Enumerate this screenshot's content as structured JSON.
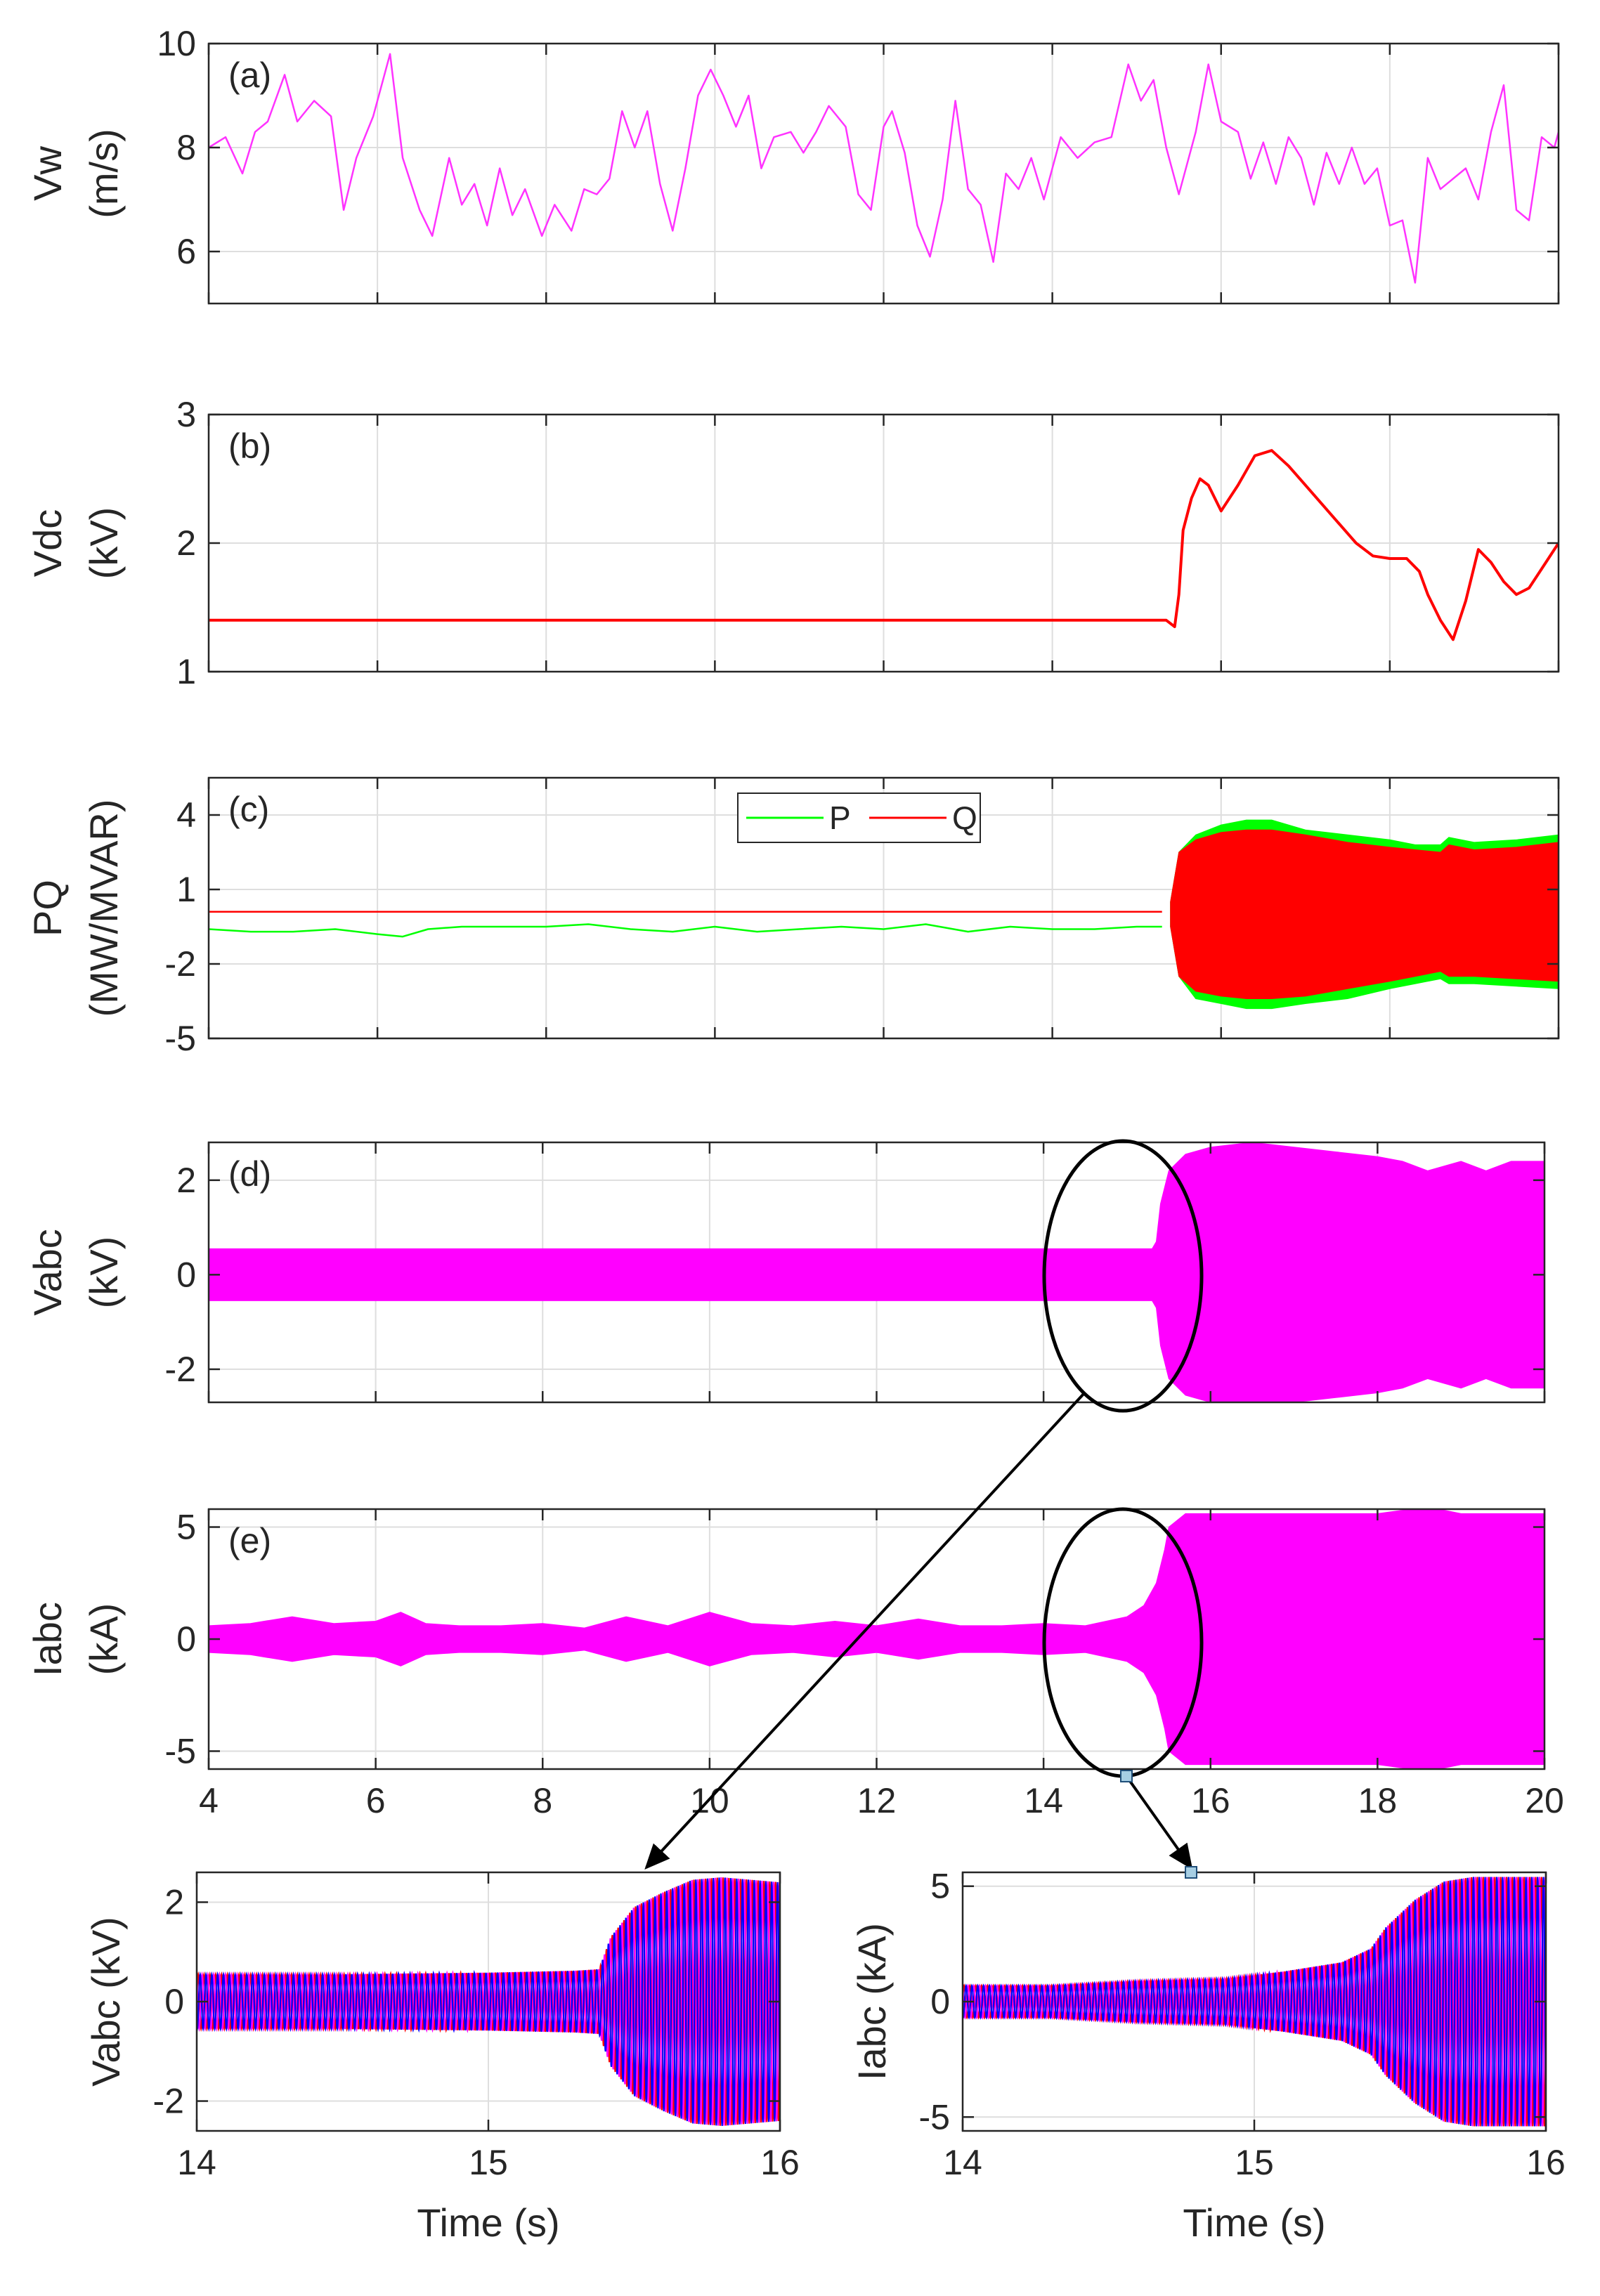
{
  "colors": {
    "vw": "#ff33ff",
    "vdc": "#ff0000",
    "p": "#00ff00",
    "q": "#ff0000",
    "band": "#ff00ff",
    "phase_a": "#ff0000",
    "phase_b": "#0000ff",
    "phase_c": "#ff00ff",
    "grid": "#dedede",
    "axis": "#262626",
    "marker": "#a6cee3"
  },
  "chart_data": [
    {
      "id": "a",
      "type": "line",
      "panel_label": "(a)",
      "ylabel": [
        "Vw",
        "(m/s)"
      ],
      "xlim": [
        4,
        20
      ],
      "ylim": [
        5,
        10
      ],
      "xticks": [
        4,
        6,
        8,
        10,
        12,
        14,
        16,
        18,
        20
      ],
      "xtick_labels": [],
      "yticks": [
        6,
        8,
        10
      ],
      "ytick_labels": [
        "6",
        "8",
        "10"
      ],
      "series": [
        {
          "name": "Vw",
          "color_key": "vw",
          "x": [
            4,
            4.2,
            4.4,
            4.55,
            4.7,
            4.9,
            5.05,
            5.25,
            5.45,
            5.6,
            5.75,
            5.95,
            6.15,
            6.3,
            6.5,
            6.65,
            6.85,
            7.0,
            7.15,
            7.3,
            7.45,
            7.6,
            7.75,
            7.95,
            8.1,
            8.3,
            8.45,
            8.6,
            8.75,
            8.9,
            9.05,
            9.2,
            9.35,
            9.5,
            9.65,
            9.8,
            9.95,
            10.1,
            10.25,
            10.4,
            10.55,
            10.7,
            10.9,
            11.05,
            11.2,
            11.35,
            11.55,
            11.7,
            11.85,
            12.0,
            12.1,
            12.25,
            12.4,
            12.55,
            12.7,
            12.85,
            13.0,
            13.15,
            13.3,
            13.45,
            13.6,
            13.75,
            13.9,
            14.1,
            14.3,
            14.5,
            14.7,
            14.9,
            15.05,
            15.2,
            15.35,
            15.5,
            15.7,
            15.85,
            16.0,
            16.2,
            16.35,
            16.5,
            16.65,
            16.8,
            16.95,
            17.1,
            17.25,
            17.4,
            17.55,
            17.7,
            17.85,
            18.0,
            18.15,
            18.3,
            18.45,
            18.6,
            18.75,
            18.9,
            19.05,
            19.2,
            19.35,
            19.5,
            19.65,
            19.8,
            19.95,
            20.0
          ],
          "y": [
            8.0,
            8.2,
            7.5,
            8.3,
            8.5,
            9.4,
            8.5,
            8.9,
            8.6,
            6.8,
            7.8,
            8.6,
            9.8,
            7.8,
            6.8,
            6.3,
            7.8,
            6.9,
            7.3,
            6.5,
            7.6,
            6.7,
            7.2,
            6.3,
            6.9,
            6.4,
            7.2,
            7.1,
            7.4,
            8.7,
            8.0,
            8.7,
            7.3,
            6.4,
            7.6,
            9.0,
            9.5,
            9.0,
            8.4,
            9.0,
            7.6,
            8.2,
            8.3,
            7.9,
            8.3,
            8.8,
            8.4,
            7.1,
            6.8,
            8.4,
            8.7,
            7.9,
            6.5,
            5.9,
            7.0,
            8.9,
            7.2,
            6.9,
            5.8,
            7.5,
            7.2,
            7.8,
            7.0,
            8.2,
            7.8,
            8.1,
            8.2,
            9.6,
            8.9,
            9.3,
            8.0,
            7.1,
            8.3,
            9.6,
            8.5,
            8.3,
            7.4,
            8.1,
            7.3,
            8.2,
            7.8,
            6.9,
            7.9,
            7.3,
            8.0,
            7.3,
            7.6,
            6.5,
            6.6,
            5.4,
            7.8,
            7.2,
            7.4,
            7.6,
            7.0,
            8.3,
            9.2,
            6.8,
            6.6,
            8.2,
            8.0,
            8.3
          ]
        }
      ]
    },
    {
      "id": "b",
      "type": "line",
      "panel_label": "(b)",
      "ylabel": [
        "Vdc",
        "(kV)"
      ],
      "xlim": [
        4,
        20
      ],
      "ylim": [
        1,
        3
      ],
      "xticks": [
        4,
        6,
        8,
        10,
        12,
        14,
        16,
        18,
        20
      ],
      "xtick_labels": [],
      "yticks": [
        1,
        2,
        3
      ],
      "ytick_labels": [
        "1",
        "2",
        "3"
      ],
      "series": [
        {
          "name": "Vdc",
          "color_key": "vdc",
          "x": [
            4,
            6,
            8,
            10,
            12,
            14,
            15.35,
            15.45,
            15.5,
            15.55,
            15.65,
            15.75,
            15.85,
            16.0,
            16.2,
            16.4,
            16.6,
            16.8,
            17.0,
            17.2,
            17.4,
            17.6,
            17.8,
            18.0,
            18.2,
            18.35,
            18.45,
            18.6,
            18.75,
            18.9,
            19.05,
            19.2,
            19.35,
            19.5,
            19.65,
            19.8,
            19.95,
            20.0
          ],
          "y": [
            1.4,
            1.4,
            1.4,
            1.4,
            1.4,
            1.4,
            1.4,
            1.35,
            1.6,
            2.1,
            2.35,
            2.5,
            2.45,
            2.25,
            2.45,
            2.68,
            2.72,
            2.6,
            2.45,
            2.3,
            2.15,
            2.0,
            1.9,
            1.88,
            1.88,
            1.78,
            1.6,
            1.4,
            1.25,
            1.55,
            1.95,
            1.85,
            1.7,
            1.6,
            1.65,
            1.8,
            1.95,
            2.0
          ]
        }
      ]
    },
    {
      "id": "c",
      "type": "line",
      "panel_label": "(c)",
      "ylabel": [
        "PQ",
        "(MW/MVAR)"
      ],
      "xlim": [
        4,
        20
      ],
      "ylim": [
        -5,
        5.5
      ],
      "xticks": [
        4,
        6,
        8,
        10,
        12,
        14,
        16,
        18,
        20
      ],
      "xtick_labels": [],
      "yticks": [
        -5,
        -2,
        1,
        4
      ],
      "ytick_labels": [
        "-5",
        "-2",
        "1",
        "4"
      ],
      "legend": {
        "entries": [
          {
            "label": "P",
            "color_key": "p"
          },
          {
            "label": "Q",
            "color_key": "q"
          }
        ],
        "location": "top-center"
      },
      "series": [
        {
          "name": "P",
          "color_key": "p",
          "kind": "line",
          "x": [
            4,
            4.5,
            5,
            5.5,
            6,
            6.3,
            6.6,
            7,
            7.5,
            8,
            8.5,
            9,
            9.5,
            10,
            10.5,
            11,
            11.5,
            12,
            12.5,
            13,
            13.5,
            14,
            14.5,
            15,
            15.3
          ],
          "y": [
            -0.6,
            -0.7,
            -0.7,
            -0.6,
            -0.8,
            -0.9,
            -0.6,
            -0.5,
            -0.5,
            -0.5,
            -0.4,
            -0.6,
            -0.7,
            -0.5,
            -0.7,
            -0.6,
            -0.5,
            -0.6,
            -0.4,
            -0.7,
            -0.5,
            -0.6,
            -0.6,
            -0.5,
            -0.5
          ]
        },
        {
          "name": "Q",
          "color_key": "q",
          "kind": "line",
          "x": [
            4,
            15.3
          ],
          "y": [
            0.1,
            0.1
          ]
        },
        {
          "name": "P envelope",
          "color_key": "p",
          "kind": "band",
          "x": [
            15.4,
            15.5,
            15.7,
            16.0,
            16.3,
            16.6,
            17.0,
            17.5,
            18.0,
            18.3,
            18.6,
            18.7,
            19.0,
            19.5,
            20.0
          ],
          "upper": [
            0.5,
            2.5,
            3.2,
            3.6,
            3.8,
            3.8,
            3.4,
            3.2,
            3.0,
            2.8,
            2.8,
            3.1,
            2.9,
            3.0,
            3.2
          ],
          "lower": [
            -0.5,
            -2.5,
            -3.4,
            -3.6,
            -3.8,
            -3.8,
            -3.6,
            -3.4,
            -3.0,
            -2.8,
            -2.6,
            -2.8,
            -2.8,
            -2.9,
            -3.0
          ]
        },
        {
          "name": "Q envelope",
          "color_key": "q",
          "kind": "band",
          "x": [
            15.4,
            15.5,
            15.7,
            16.0,
            16.3,
            16.6,
            17.0,
            17.5,
            18.0,
            18.3,
            18.6,
            18.7,
            19.0,
            19.5,
            20.0
          ],
          "upper": [
            0.5,
            2.5,
            3.0,
            3.3,
            3.4,
            3.4,
            3.2,
            2.9,
            2.7,
            2.6,
            2.5,
            2.8,
            2.6,
            2.7,
            2.9
          ],
          "lower": [
            -0.5,
            -2.5,
            -3.1,
            -3.3,
            -3.4,
            -3.4,
            -3.3,
            -3.0,
            -2.7,
            -2.5,
            -2.3,
            -2.5,
            -2.5,
            -2.6,
            -2.7
          ]
        }
      ]
    },
    {
      "id": "d",
      "type": "area",
      "panel_label": "(d)",
      "ylabel": [
        "Vabc",
        "(kV)"
      ],
      "xlim": [
        4,
        20
      ],
      "ylim": [
        -2.7,
        2.8
      ],
      "xticks": [
        4,
        6,
        8,
        10,
        12,
        14,
        16,
        18,
        20
      ],
      "xtick_labels": [],
      "yticks": [
        -2,
        0,
        2
      ],
      "ytick_labels": [
        "-2",
        "0",
        "2"
      ],
      "series": [
        {
          "name": "Vabc",
          "color_key": "band",
          "kind": "band",
          "x": [
            4,
            15.3,
            15.35,
            15.4,
            15.5,
            15.7,
            16.0,
            16.5,
            17.0,
            17.5,
            18.0,
            18.3,
            18.6,
            19.0,
            19.3,
            19.6,
            20.0
          ],
          "upper": [
            0.55,
            0.55,
            0.7,
            1.5,
            2.2,
            2.55,
            2.7,
            2.8,
            2.7,
            2.6,
            2.5,
            2.4,
            2.2,
            2.4,
            2.2,
            2.4,
            2.4
          ],
          "lower": [
            -0.55,
            -0.55,
            -0.7,
            -1.5,
            -2.2,
            -2.55,
            -2.7,
            -2.8,
            -2.7,
            -2.6,
            -2.5,
            -2.4,
            -2.2,
            -2.4,
            -2.2,
            -2.4,
            -2.4
          ]
        }
      ]
    },
    {
      "id": "e",
      "type": "area",
      "panel_label": "(e)",
      "ylabel": [
        "Iabc",
        "(kA)"
      ],
      "xlim": [
        4,
        20
      ],
      "ylim": [
        -5.8,
        5.8
      ],
      "xticks": [
        4,
        6,
        8,
        10,
        12,
        14,
        16,
        18,
        20
      ],
      "xtick_labels": [
        "4",
        "6",
        "8",
        "10",
        "12",
        "14",
        "16",
        "18",
        "20"
      ],
      "yticks": [
        -5,
        0,
        5
      ],
      "ytick_labels": [
        "-5",
        "0",
        "5"
      ],
      "series": [
        {
          "name": "Iabc",
          "color_key": "band",
          "kind": "band",
          "x": [
            4,
            4.5,
            5,
            5.5,
            6,
            6.3,
            6.6,
            7,
            7.5,
            8,
            8.5,
            9,
            9.5,
            10,
            10.5,
            11,
            11.5,
            12,
            12.5,
            13,
            13.5,
            14,
            14.5,
            15,
            15.2,
            15.35,
            15.45,
            15.5,
            15.7,
            16,
            17,
            18,
            18.6,
            19,
            20
          ],
          "upper": [
            0.6,
            0.7,
            1.0,
            0.7,
            0.8,
            1.2,
            0.7,
            0.6,
            0.6,
            0.7,
            0.5,
            1.0,
            0.6,
            1.2,
            0.7,
            0.6,
            0.8,
            0.6,
            0.9,
            0.6,
            0.6,
            0.7,
            0.6,
            1.0,
            1.5,
            2.5,
            4.0,
            5.0,
            5.6,
            5.6,
            5.6,
            5.6,
            5.9,
            5.6,
            5.6
          ],
          "lower": [
            -0.6,
            -0.7,
            -1.0,
            -0.7,
            -0.8,
            -1.2,
            -0.7,
            -0.6,
            -0.6,
            -0.7,
            -0.5,
            -1.0,
            -0.6,
            -1.2,
            -0.7,
            -0.6,
            -0.8,
            -0.6,
            -0.9,
            -0.6,
            -0.6,
            -0.7,
            -0.6,
            -1.0,
            -1.5,
            -2.5,
            -4.0,
            -5.0,
            -5.6,
            -5.6,
            -5.6,
            -5.6,
            -5.9,
            -5.6,
            -5.6
          ]
        }
      ]
    },
    {
      "id": "zoom-v",
      "type": "line",
      "panel_label": "",
      "ylabel": [
        "Vabc (kV)"
      ],
      "xlabel": "Time (s)",
      "xlim": [
        14,
        16
      ],
      "ylim": [
        -2.6,
        2.6
      ],
      "xticks": [
        14,
        15,
        16
      ],
      "xtick_labels": [
        "14",
        "15",
        "16"
      ],
      "yticks": [
        -2,
        0,
        2
      ],
      "ytick_labels": [
        "-2",
        "0",
        "2"
      ],
      "series": [
        {
          "name": "Vabc three-phase",
          "kind": "oscillation",
          "color_keys": [
            "phase_a",
            "phase_c",
            "phase_b"
          ],
          "x": [
            14,
            14.5,
            15.0,
            15.3,
            15.38,
            15.42,
            15.5,
            15.6,
            15.7,
            15.8,
            15.9,
            16.0
          ],
          "amplitude": [
            0.55,
            0.55,
            0.58,
            0.62,
            0.65,
            1.3,
            1.9,
            2.2,
            2.45,
            2.5,
            2.45,
            2.4
          ]
        }
      ]
    },
    {
      "id": "zoom-i",
      "type": "line",
      "panel_label": "",
      "ylabel": [
        "Iabc (kA)"
      ],
      "xlabel": "Time (s)",
      "xlim": [
        14,
        16
      ],
      "ylim": [
        -5.6,
        5.6
      ],
      "xticks": [
        14,
        15,
        16
      ],
      "xtick_labels": [
        "14",
        "15",
        "16"
      ],
      "yticks": [
        -5,
        0,
        5
      ],
      "ytick_labels": [
        "-5",
        "0",
        "5"
      ],
      "series": [
        {
          "name": "Iabc three-phase",
          "kind": "oscillation",
          "color_keys": [
            "phase_a",
            "phase_c",
            "phase_b"
          ],
          "x": [
            14,
            14.3,
            14.6,
            14.9,
            15.1,
            15.3,
            15.4,
            15.45,
            15.55,
            15.65,
            15.75,
            15.9,
            16.0
          ],
          "amplitude": [
            0.7,
            0.7,
            0.9,
            1.0,
            1.3,
            1.7,
            2.3,
            3.2,
            4.4,
            5.2,
            5.4,
            5.4,
            5.4
          ]
        }
      ]
    }
  ]
}
